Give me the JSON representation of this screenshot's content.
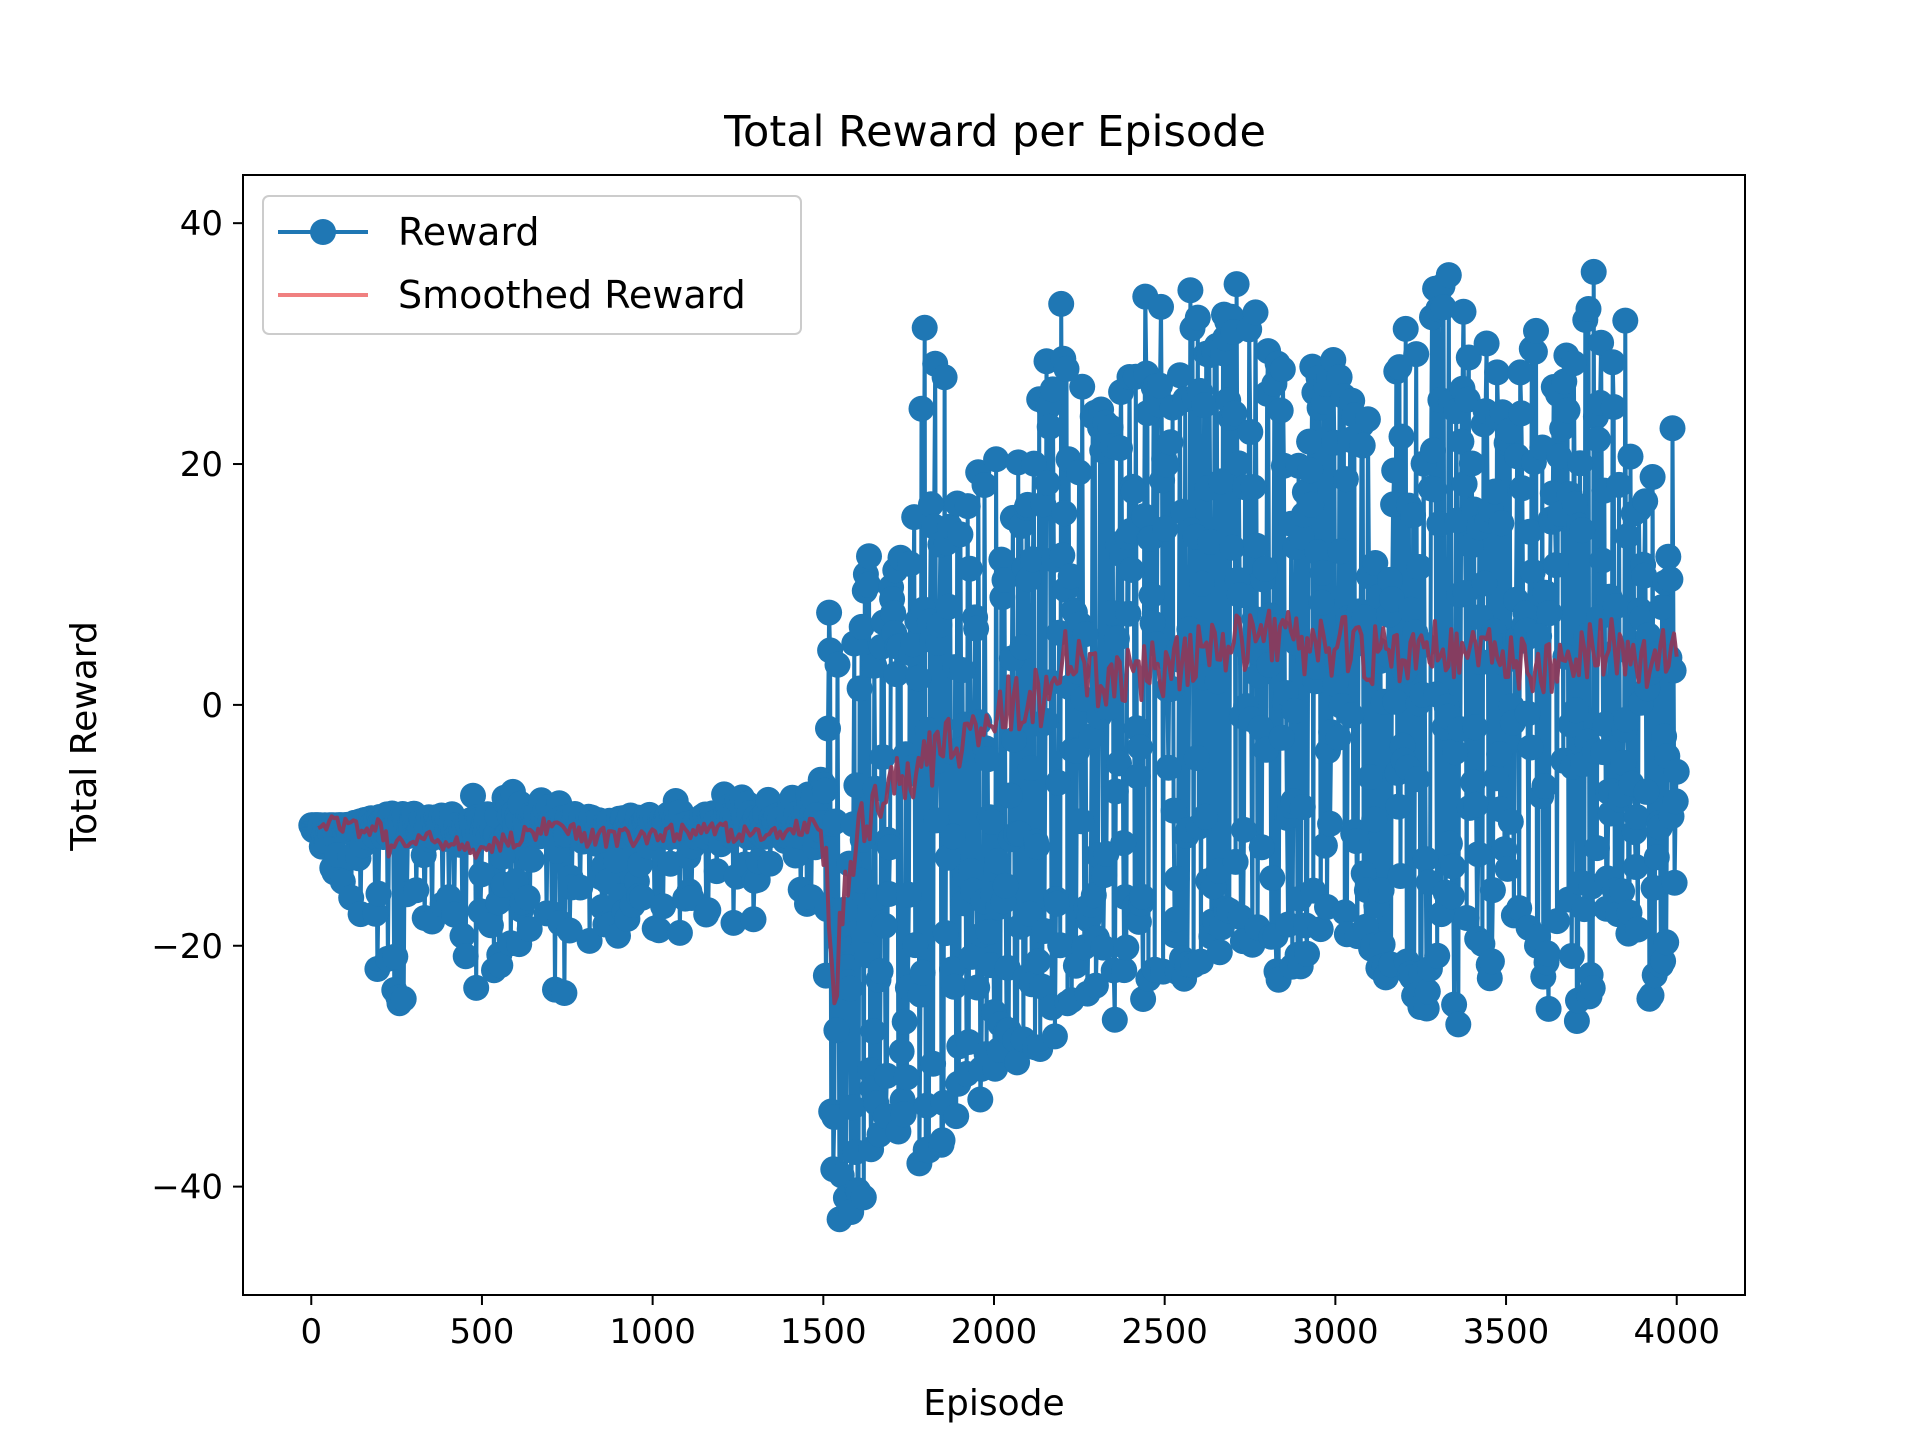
{
  "chart_data": {
    "type": "line",
    "title": "Total Reward per Episode",
    "xlabel": "Episode",
    "ylabel": "Total Reward",
    "xlim": [
      -200,
      4200
    ],
    "ylim": [
      -49,
      44
    ],
    "xticks": [
      0,
      500,
      1000,
      1500,
      2000,
      2500,
      3000,
      3500,
      4000
    ],
    "yticks": [
      -40,
      -20,
      0,
      20,
      40
    ],
    "ytick_labels": [
      "−40",
      "−20",
      "0",
      "20",
      "40"
    ],
    "grid": false,
    "legend": {
      "position": "top-left",
      "entries": [
        "Reward",
        "Smoothed Reward"
      ]
    },
    "colors": {
      "reward": "#1f77b4",
      "smoothed": "#f08080",
      "smoothed_overlap": "#8b3a5c"
    },
    "series": [
      {
        "name": "Reward",
        "style": "line-with-markers",
        "episodes": [
          0,
          4000
        ],
        "envelope": [
          {
            "x": 0,
            "min": -10,
            "max": -10
          },
          {
            "x": 100,
            "min": -17,
            "max": -10
          },
          {
            "x": 230,
            "min": -26,
            "max": -9
          },
          {
            "x": 400,
            "min": -20,
            "max": -9
          },
          {
            "x": 500,
            "min": -26,
            "max": -7
          },
          {
            "x": 600,
            "min": -20,
            "max": -7
          },
          {
            "x": 700,
            "min": -26,
            "max": -8
          },
          {
            "x": 800,
            "min": -22,
            "max": -8
          },
          {
            "x": 900,
            "min": -23,
            "max": -9
          },
          {
            "x": 1000,
            "min": -19,
            "max": -9
          },
          {
            "x": 1100,
            "min": -19,
            "max": -6
          },
          {
            "x": 1200,
            "min": -19,
            "max": -7
          },
          {
            "x": 1300,
            "min": -19,
            "max": -7
          },
          {
            "x": 1400,
            "min": -16,
            "max": -7
          },
          {
            "x": 1480,
            "min": -17,
            "max": -6
          },
          {
            "x": 1500,
            "min": -31,
            "max": -2
          },
          {
            "x": 1525,
            "min": -45,
            "max": 17
          },
          {
            "x": 1560,
            "min": -43,
            "max": 4
          },
          {
            "x": 1600,
            "min": -44,
            "max": 14
          },
          {
            "x": 1700,
            "min": -35,
            "max": 11
          },
          {
            "x": 1780,
            "min": -38,
            "max": 21
          },
          {
            "x": 1800,
            "min": -39,
            "max": 36
          },
          {
            "x": 1900,
            "min": -34,
            "max": 22
          },
          {
            "x": 2000,
            "min": -32,
            "max": 23
          },
          {
            "x": 2100,
            "min": -29,
            "max": 19
          },
          {
            "x": 2180,
            "min": -29,
            "max": 39
          },
          {
            "x": 2250,
            "min": -25,
            "max": 27
          },
          {
            "x": 2350,
            "min": -27,
            "max": 24
          },
          {
            "x": 2450,
            "min": -25,
            "max": 35
          },
          {
            "x": 2550,
            "min": -24,
            "max": 36
          },
          {
            "x": 2650,
            "min": -21,
            "max": 32
          },
          {
            "x": 2750,
            "min": -21,
            "max": 37
          },
          {
            "x": 2850,
            "min": -24,
            "max": 29
          },
          {
            "x": 3000,
            "min": -20,
            "max": 29
          },
          {
            "x": 3100,
            "min": -24,
            "max": 24
          },
          {
            "x": 3200,
            "min": -23,
            "max": 31
          },
          {
            "x": 3300,
            "min": -28,
            "max": 36
          },
          {
            "x": 3400,
            "min": -28,
            "max": 36
          },
          {
            "x": 3500,
            "min": -18,
            "max": 25
          },
          {
            "x": 3600,
            "min": -24,
            "max": 32
          },
          {
            "x": 3670,
            "min": -32,
            "max": 29
          },
          {
            "x": 3800,
            "min": -19,
            "max": 40
          },
          {
            "x": 3860,
            "min": -19,
            "max": 32
          },
          {
            "x": 3920,
            "min": -27,
            "max": 23
          },
          {
            "x": 4000,
            "min": -18,
            "max": 23
          }
        ]
      },
      {
        "name": "Smoothed Reward",
        "style": "line",
        "points": [
          {
            "x": 20,
            "y": -10
          },
          {
            "x": 100,
            "y": -10
          },
          {
            "x": 150,
            "y": -10.5
          },
          {
            "x": 200,
            "y": -10
          },
          {
            "x": 230,
            "y": -12
          },
          {
            "x": 300,
            "y": -11
          },
          {
            "x": 400,
            "y": -11.5
          },
          {
            "x": 500,
            "y": -12
          },
          {
            "x": 600,
            "y": -11
          },
          {
            "x": 700,
            "y": -10
          },
          {
            "x": 800,
            "y": -11
          },
          {
            "x": 900,
            "y": -11
          },
          {
            "x": 1000,
            "y": -11
          },
          {
            "x": 1100,
            "y": -10.5
          },
          {
            "x": 1200,
            "y": -10.5
          },
          {
            "x": 1300,
            "y": -11
          },
          {
            "x": 1400,
            "y": -10.5
          },
          {
            "x": 1480,
            "y": -10
          },
          {
            "x": 1510,
            "y": -13
          },
          {
            "x": 1530,
            "y": -24
          },
          {
            "x": 1560,
            "y": -17
          },
          {
            "x": 1600,
            "y": -11
          },
          {
            "x": 1650,
            "y": -9
          },
          {
            "x": 1700,
            "y": -7
          },
          {
            "x": 1750,
            "y": -6
          },
          {
            "x": 1800,
            "y": -5
          },
          {
            "x": 1850,
            "y": -4
          },
          {
            "x": 1900,
            "y": -3
          },
          {
            "x": 1950,
            "y": -2
          },
          {
            "x": 2000,
            "y": -1
          },
          {
            "x": 2050,
            "y": 0
          },
          {
            "x": 2100,
            "y": 0
          },
          {
            "x": 2150,
            "y": 1
          },
          {
            "x": 2200,
            "y": 4
          },
          {
            "x": 2300,
            "y": 2
          },
          {
            "x": 2400,
            "y": 3
          },
          {
            "x": 2500,
            "y": 3
          },
          {
            "x": 2600,
            "y": 4
          },
          {
            "x": 2700,
            "y": 5
          },
          {
            "x": 2800,
            "y": 6
          },
          {
            "x": 2900,
            "y": 5
          },
          {
            "x": 3000,
            "y": 5
          },
          {
            "x": 3100,
            "y": 4
          },
          {
            "x": 3200,
            "y": 4
          },
          {
            "x": 3300,
            "y": 5
          },
          {
            "x": 3400,
            "y": 4
          },
          {
            "x": 3500,
            "y": 4
          },
          {
            "x": 3600,
            "y": 3
          },
          {
            "x": 3700,
            "y": 4
          },
          {
            "x": 3800,
            "y": 5
          },
          {
            "x": 3900,
            "y": 4
          },
          {
            "x": 4000,
            "y": 4
          }
        ]
      }
    ]
  }
}
